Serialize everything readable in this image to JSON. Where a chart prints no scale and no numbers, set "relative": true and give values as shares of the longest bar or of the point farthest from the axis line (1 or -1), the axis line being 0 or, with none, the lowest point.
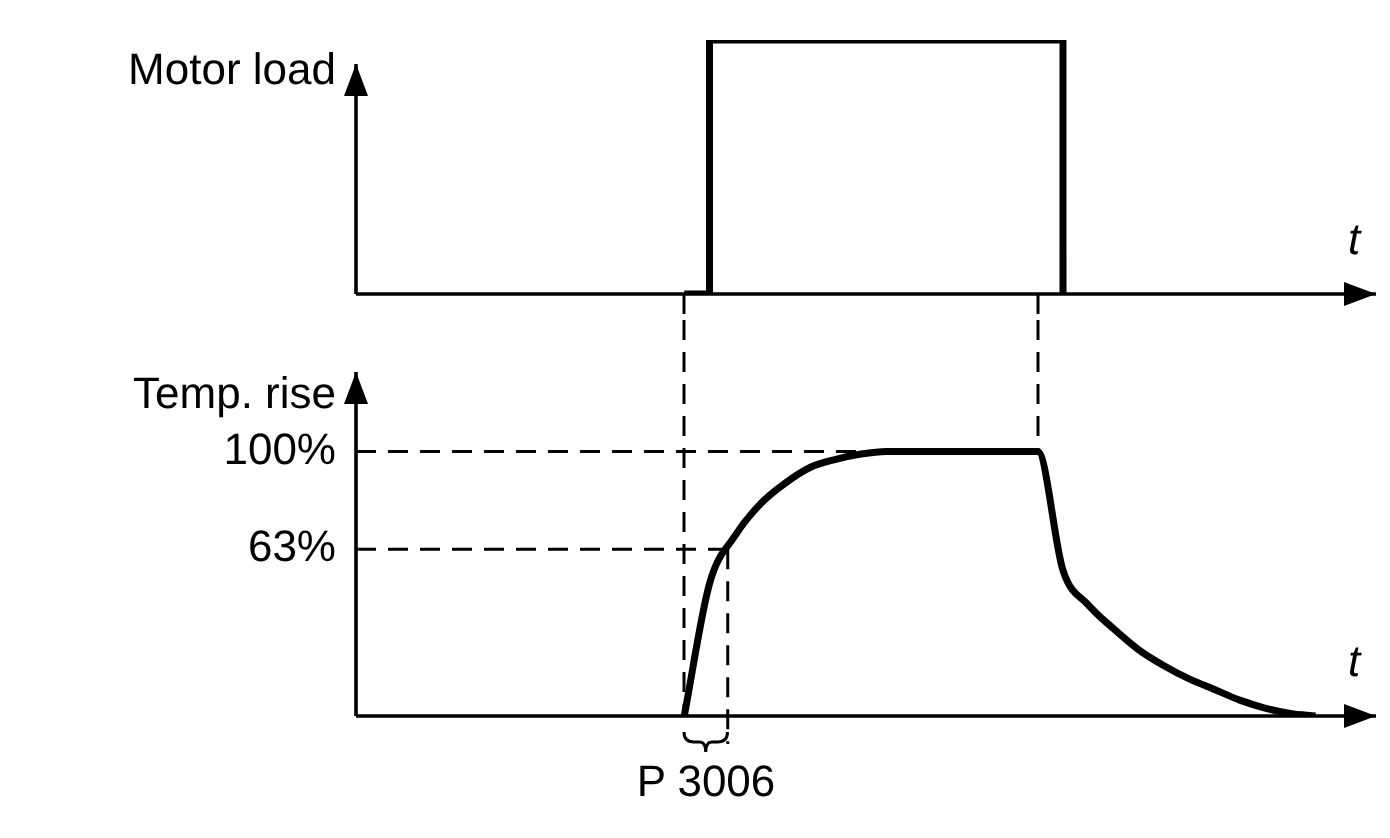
{
  "chart_data": [
    {
      "type": "step",
      "ylabel": "Motor load",
      "xlabel": "t",
      "relative": true,
      "tick_labels": false,
      "grid": false,
      "legend": false,
      "categories": [
        null,
        null,
        null,
        null,
        null,
        null,
        null,
        null,
        null,
        null,
        null,
        null,
        null,
        null,
        null,
        null,
        null,
        null,
        null,
        null,
        null,
        null,
        null,
        null,
        null,
        null,
        null,
        null,
        null,
        null,
        null,
        null,
        null,
        null,
        null,
        null,
        null,
        null,
        null,
        null,
        null
      ],
      "series": [
        {
          "color": "#000000",
          "values": [
            null,
            null,
            null,
            null,
            null,
            null,
            null,
            null,
            null,
            null,
            null,
            null,
            null,
            0,
            1,
            1,
            1,
            1,
            1,
            1,
            1,
            1,
            1,
            1,
            1,
            1,
            1,
            1,
            0,
            null,
            null,
            null,
            null,
            null,
            null,
            null,
            null,
            null,
            null,
            null,
            null
          ]
        }
      ]
    },
    {
      "type": "line",
      "ylabel": "Temp. rise",
      "xlabel": "t",
      "ylim": [
        0,
        130
      ],
      "yticks": [
        {
          "value": 63,
          "label": "63%"
        },
        {
          "value": 100,
          "label": "100%"
        }
      ],
      "tick_labels": "y",
      "grid": false,
      "legend": false,
      "categories": [
        null,
        null,
        null,
        null,
        null,
        null,
        null,
        null,
        null,
        null,
        null,
        null,
        null,
        null,
        null,
        null,
        null,
        null,
        null,
        null,
        null,
        null,
        null,
        null,
        null,
        null,
        null,
        null,
        null,
        null,
        null,
        null,
        null,
        null,
        null,
        null,
        null,
        null,
        null,
        null,
        null
      ],
      "ref_lines": [
        {
          "axis": "y",
          "value": 63,
          "line_style": "dashed"
        },
        {
          "axis": "y",
          "value": 100,
          "line_style": "dashed"
        }
      ],
      "annotations": [
        "P 3006"
      ],
      "series": [
        {
          "color": "#000000",
          "values": [
            null,
            null,
            null,
            null,
            null,
            null,
            null,
            null,
            null,
            null,
            null,
            null,
            null,
            0,
            50,
            68,
            80,
            88,
            94,
            97,
            99,
            100,
            100,
            100,
            100,
            100,
            100,
            100,
            55,
            42,
            33,
            25,
            19,
            14,
            10,
            6,
            3,
            1,
            0,
            null,
            null
          ]
        }
      ]
    }
  ]
}
